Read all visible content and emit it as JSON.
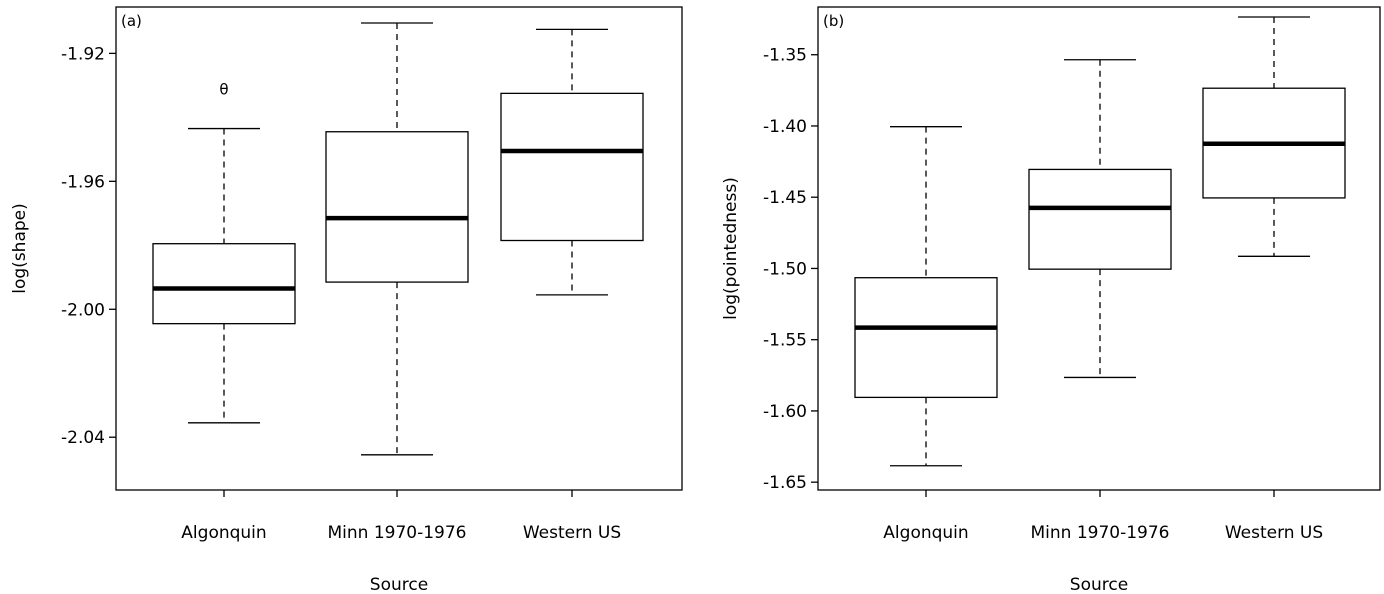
{
  "chart_data": [
    {
      "type": "box",
      "panel_label": "(a)",
      "xlabel": "Source",
      "ylabel": "log(shape)",
      "categories": [
        "Algonquin",
        "Minn 1970-1976",
        "Western US"
      ],
      "ylim": [
        -2.0565,
        -1.9055
      ],
      "yticks": [
        -2.04,
        -2.0,
        -1.96,
        -1.92
      ],
      "ytick_labels": [
        "-2.04",
        "-2.00",
        "-1.96",
        "-1.92"
      ],
      "boxes": [
        {
          "category": "Algonquin",
          "whisker_low": -2.0355,
          "q1": -2.0045,
          "median": -1.9935,
          "q3": -1.9795,
          "whisker_high": -1.9435,
          "outliers": [
            -1.931
          ]
        },
        {
          "category": "Minn 1970-1976",
          "whisker_low": -2.0455,
          "q1": -1.9915,
          "median": -1.9715,
          "q3": -1.9445,
          "whisker_high": -1.9105,
          "outliers": []
        },
        {
          "category": "Western US",
          "whisker_low": -1.9955,
          "q1": -1.9785,
          "median": -1.9505,
          "q3": -1.9325,
          "whisker_high": -1.9125,
          "outliers": []
        }
      ],
      "outlier_symbol": "θ"
    },
    {
      "type": "box",
      "panel_label": "(b)",
      "xlabel": "Source",
      "ylabel": "log(pointedness)",
      "categories": [
        "Algonquin",
        "Minn 1970-1976",
        "Western US"
      ],
      "ylim": [
        -1.6555,
        -1.3165
      ],
      "yticks": [
        -1.65,
        -1.6,
        -1.55,
        -1.5,
        -1.45,
        -1.4,
        -1.35
      ],
      "ytick_labels": [
        "-1.65",
        "-1.60",
        "-1.55",
        "-1.50",
        "-1.45",
        "-1.40",
        "-1.35"
      ],
      "boxes": [
        {
          "category": "Algonquin",
          "whisker_low": -1.6385,
          "q1": -1.5905,
          "median": -1.5415,
          "q3": -1.5065,
          "whisker_high": -1.4005,
          "outliers": []
        },
        {
          "category": "Minn 1970-1976",
          "whisker_low": -1.5765,
          "q1": -1.5005,
          "median": -1.4575,
          "q3": -1.4305,
          "whisker_high": -1.3535,
          "outliers": []
        },
        {
          "category": "Western US",
          "whisker_low": -1.4915,
          "q1": -1.4505,
          "median": -1.4125,
          "q3": -1.3735,
          "whisker_high": -1.3235,
          "outliers": []
        }
      ]
    }
  ]
}
